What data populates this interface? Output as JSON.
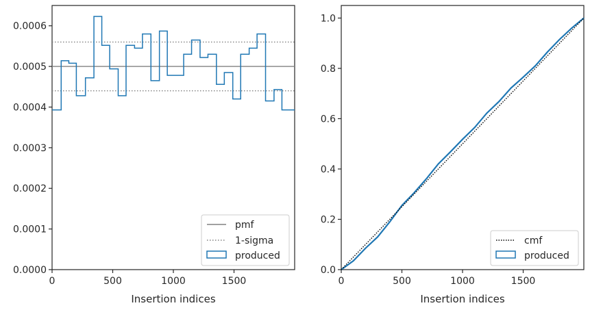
{
  "chart_data": [
    {
      "type": "histogram-step",
      "xlabel": "Insertion indices",
      "ylabel": "",
      "xlim": [
        0,
        2000
      ],
      "ylim": [
        0,
        0.00065
      ],
      "xticks": [
        0,
        500,
        1000,
        1500
      ],
      "xtick_labels": [
        "0",
        "500",
        "1000",
        "1500"
      ],
      "yticks": [
        0,
        0.0001,
        0.0002,
        0.0003,
        0.0004,
        0.0005,
        0.0006
      ],
      "ytick_labels": [
        "0.0000",
        "0.0001",
        "0.0002",
        "0.0003",
        "0.0004",
        "0.0005",
        "0.0006"
      ],
      "grid": false,
      "legend_position": "bottom-right",
      "legend": [
        "pmf",
        "1-sigma",
        "produced"
      ],
      "pmf": 0.0005,
      "sigma_band": [
        0.00044,
        0.00056
      ],
      "bin_edges": [
        0,
        75,
        138,
        200,
        275,
        345,
        410,
        475,
        545,
        610,
        680,
        745,
        815,
        885,
        950,
        1020,
        1085,
        1150,
        1220,
        1285,
        1355,
        1420,
        1490,
        1555,
        1625,
        1690,
        1760,
        1830,
        1895,
        1960,
        2000
      ],
      "produced": [
        0.000393,
        0.000514,
        0.000508,
        0.000428,
        0.000472,
        0.000623,
        0.000552,
        0.000494,
        0.000428,
        0.000552,
        0.000545,
        0.00058,
        0.000465,
        0.000587,
        0.000478,
        0.000478,
        0.00053,
        0.000565,
        0.000522,
        0.00053,
        0.000456,
        0.000485,
        0.00042,
        0.00053,
        0.000545,
        0.00058,
        0.000415,
        0.000443,
        0.000393,
        0.000393
      ]
    },
    {
      "type": "line",
      "xlabel": "Insertion indices",
      "ylabel": "",
      "xlim": [
        0,
        2000
      ],
      "ylim": [
        0,
        1.05
      ],
      "xticks": [
        0,
        500,
        1000,
        1500
      ],
      "xtick_labels": [
        "0",
        "500",
        "1000",
        "1500"
      ],
      "yticks": [
        0.0,
        0.2,
        0.4,
        0.6,
        0.8,
        1.0
      ],
      "ytick_labels": [
        "0.0",
        "0.2",
        "0.4",
        "0.6",
        "0.8",
        "1.0"
      ],
      "grid": false,
      "legend_position": "bottom-right",
      "legend": [
        "cmf",
        "produced"
      ],
      "cmf": {
        "x": [
          0,
          2000
        ],
        "y": [
          0,
          1.0
        ]
      },
      "produced": {
        "x": [
          0,
          100,
          200,
          300,
          400,
          500,
          600,
          700,
          800,
          900,
          1000,
          1100,
          1200,
          1300,
          1400,
          1500,
          1600,
          1700,
          1800,
          1900,
          2000
        ],
        "y": [
          0.0,
          0.035,
          0.085,
          0.13,
          0.19,
          0.255,
          0.305,
          0.36,
          0.42,
          0.468,
          0.518,
          0.565,
          0.622,
          0.668,
          0.722,
          0.765,
          0.81,
          0.865,
          0.915,
          0.96,
          1.0
        ]
      }
    }
  ]
}
